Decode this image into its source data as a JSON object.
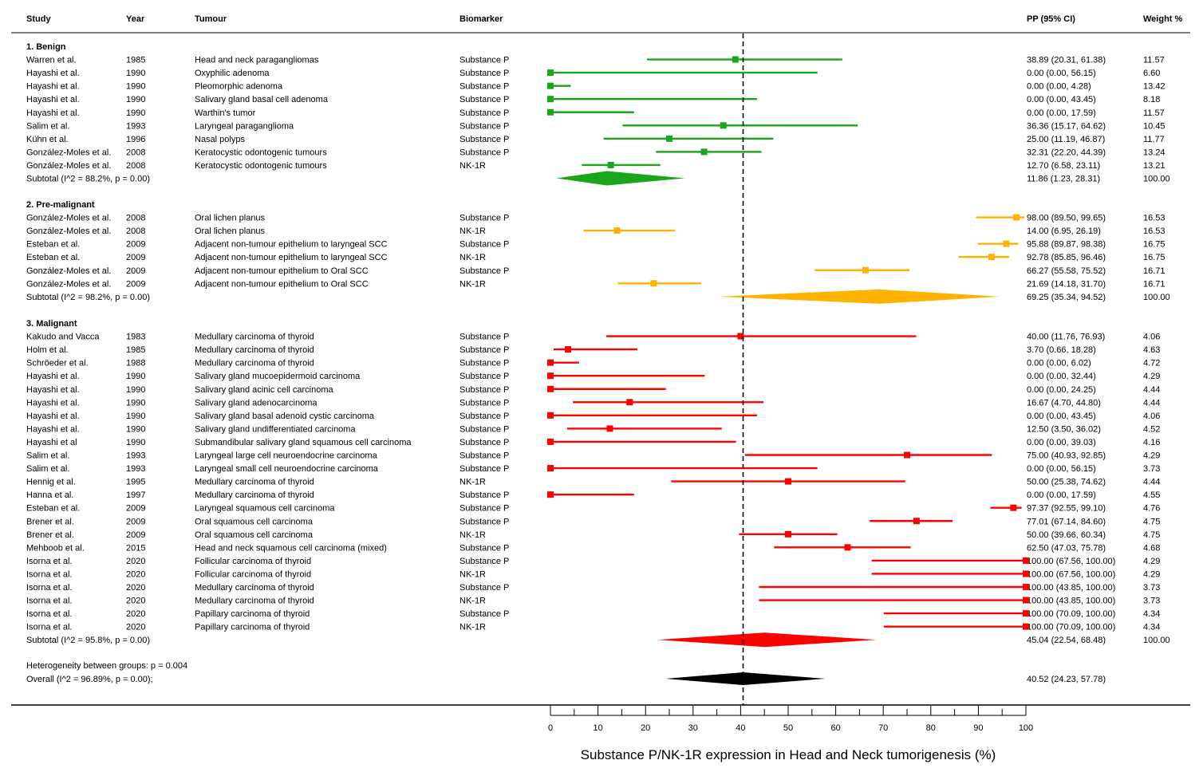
{
  "chart_data": {
    "type": "forest",
    "xlabel": "Substance P/NK-1R expression in Head and Neck tumorigenesis (%)",
    "xlim": [
      0,
      100
    ],
    "xticks": [
      0,
      10,
      20,
      30,
      40,
      50,
      60,
      70,
      80,
      90,
      100
    ],
    "reference_line": 40.52,
    "columns": {
      "study": "Study",
      "year": "Year",
      "tumour": "Tumour",
      "biomarker": "Biomarker",
      "pp": "PP (95% CI)",
      "weight": "Weight %"
    },
    "groups": [
      {
        "label": "1. Benign",
        "color": "#1aa61a",
        "studies": [
          {
            "study": "Warren et al.",
            "year": "1985",
            "tumour": "Head and neck paragangliomas",
            "biomarker": "Substance P",
            "est": 38.89,
            "lo": 20.31,
            "hi": 61.38,
            "pp": "38.89 (20.31, 61.38)",
            "weight": "11.57"
          },
          {
            "study": "Hayashi et al.",
            "year": "1990",
            "tumour": "Oxyphilic adenoma",
            "biomarker": "Substance P",
            "est": 0.0,
            "lo": 0.0,
            "hi": 56.15,
            "pp": "0.00 (0.00, 56.15)",
            "weight": "6.60"
          },
          {
            "study": "Hayashi et al.",
            "year": "1990",
            "tumour": "Pleomorphic adenoma",
            "biomarker": "Substance P",
            "est": 0.0,
            "lo": 0.0,
            "hi": 4.28,
            "pp": "0.00 (0.00, 4.28)",
            "weight": "13.42"
          },
          {
            "study": "Hayashi et al.",
            "year": "1990",
            "tumour": "Salivary gland basal cell adenoma",
            "biomarker": "Substance P",
            "est": 0.0,
            "lo": 0.0,
            "hi": 43.45,
            "pp": "0.00 (0.00, 43.45)",
            "weight": "8.18"
          },
          {
            "study": "Hayashi et al.",
            "year": "1990",
            "tumour": "Warthin's tumor",
            "biomarker": "Substance P",
            "est": 0.0,
            "lo": 0.0,
            "hi": 17.59,
            "pp": "0.00 (0.00, 17.59)",
            "weight": "11.57"
          },
          {
            "study": "Salim et al.",
            "year": "1993",
            "tumour": "Laryngeal paraganglioma",
            "biomarker": "Substance P",
            "est": 36.36,
            "lo": 15.17,
            "hi": 64.62,
            "pp": "36.36 (15.17, 64.62)",
            "weight": "10.45"
          },
          {
            "study": "Kühn et al.",
            "year": "1996",
            "tumour": "Nasal polyps",
            "biomarker": "Substance P",
            "est": 25.0,
            "lo": 11.19,
            "hi": 46.87,
            "pp": "25.00 (11.19, 46.87)",
            "weight": "11.77"
          },
          {
            "study": "González-Moles et al.",
            "year": "2008",
            "tumour": "Keratocystic odontogenic tumours",
            "biomarker": "Substance P",
            "est": 32.31,
            "lo": 22.2,
            "hi": 44.39,
            "pp": "32.31 (22.20, 44.39)",
            "weight": "13.24"
          },
          {
            "study": "González-Moles et al.",
            "year": "2008",
            "tumour": "Keratocystic odontogenic tumours",
            "biomarker": "NK-1R",
            "est": 12.7,
            "lo": 6.58,
            "hi": 23.11,
            "pp": "12.70 (6.58, 23.11)",
            "weight": "13.21"
          }
        ],
        "subtotal": {
          "label": "Subtotal  (I^2 = 88.2%, p = 0.00)",
          "est": 11.86,
          "lo": 1.23,
          "hi": 28.31,
          "pp": "11.86 (1.23, 28.31)",
          "weight": "100.00"
        }
      },
      {
        "label": "2. Pre-malignant",
        "color": "#ffb300",
        "studies": [
          {
            "study": "González-Moles et al.",
            "year": "2008",
            "tumour": "Oral lichen planus",
            "biomarker": "Substance P",
            "est": 98.0,
            "lo": 89.5,
            "hi": 99.65,
            "pp": "98.00 (89.50, 99.65)",
            "weight": "16.53"
          },
          {
            "study": "González-Moles et al.",
            "year": "2008",
            "tumour": "Oral lichen planus",
            "biomarker": "NK-1R",
            "est": 14.0,
            "lo": 6.95,
            "hi": 26.19,
            "pp": "14.00 (6.95, 26.19)",
            "weight": "16.53"
          },
          {
            "study": "Esteban et al.",
            "year": "2009",
            "tumour": "Adjacent non-tumour epithelium to laryngeal SCC",
            "biomarker": "Substance P",
            "est": 95.88,
            "lo": 89.87,
            "hi": 98.38,
            "pp": "95.88 (89.87, 98.38)",
            "weight": "16.75"
          },
          {
            "study": "Esteban et al.",
            "year": "2009",
            "tumour": "Adjacent non-tumour epithelium to laryngeal SCC",
            "biomarker": "NK-1R",
            "est": 92.78,
            "lo": 85.85,
            "hi": 96.46,
            "pp": "92.78 (85.85, 96.46)",
            "weight": "16.75"
          },
          {
            "study": "González-Moles et al.",
            "year": "2009",
            "tumour": "Adjacent non-tumour epithelium to Oral SCC",
            "biomarker": "Substance P",
            "est": 66.27,
            "lo": 55.58,
            "hi": 75.52,
            "pp": "66.27 (55.58, 75.52)",
            "weight": "16.71"
          },
          {
            "study": "González-Moles et al.",
            "year": "2009",
            "tumour": "Adjacent non-tumour epithelium to Oral SCC",
            "biomarker": "NK-1R",
            "est": 21.69,
            "lo": 14.18,
            "hi": 31.7,
            "pp": "21.69 (14.18, 31.70)",
            "weight": "16.71"
          }
        ],
        "subtotal": {
          "label": "Subtotal  (I^2 = 98.2%, p = 0.00)",
          "est": 69.25,
          "lo": 35.34,
          "hi": 94.52,
          "pp": "69.25 (35.34, 94.52)",
          "weight": "100.00"
        }
      },
      {
        "label": "3. Malignant",
        "color": "#ff0000",
        "studies": [
          {
            "study": "Kakudo and Vacca",
            "year": "1983",
            "tumour": "Medullary carcinoma of thyroid",
            "biomarker": "Substance P",
            "est": 40.0,
            "lo": 11.76,
            "hi": 76.93,
            "pp": "40.00 (11.76, 76.93)",
            "weight": "4.06"
          },
          {
            "study": "Holm et al.",
            "year": "1985",
            "tumour": "Medullary carcinoma of thyroid",
            "biomarker": "Substance P",
            "est": 3.7,
            "lo": 0.66,
            "hi": 18.28,
            "pp": "3.70 (0.66, 18.28)",
            "weight": "4.63"
          },
          {
            "study": "Schröeder et al.",
            "year": "1988",
            "tumour": "Medullary carcinoma of thyroid",
            "biomarker": "Substance P",
            "est": 0.0,
            "lo": 0.0,
            "hi": 6.02,
            "pp": "0.00 (0.00, 6.02)",
            "weight": "4.72"
          },
          {
            "study": "Hayashi et al.",
            "year": "1990",
            "tumour": "Salivary gland mucoepidermoid carcinoma",
            "biomarker": "Substance P",
            "est": 0.0,
            "lo": 0.0,
            "hi": 32.44,
            "pp": "0.00 (0.00, 32.44)",
            "weight": "4.29"
          },
          {
            "study": "Hayashi et al.",
            "year": "1990",
            "tumour": "Salivary gland acinic cell carcinoma",
            "biomarker": "Substance P",
            "est": 0.0,
            "lo": 0.0,
            "hi": 24.25,
            "pp": "0.00 (0.00, 24.25)",
            "weight": "4.44"
          },
          {
            "study": "Hayashi et al.",
            "year": "1990",
            "tumour": "Salivary gland adenocarcinoma",
            "biomarker": "Substance P",
            "est": 16.67,
            "lo": 4.7,
            "hi": 44.8,
            "pp": "16.67 (4.70, 44.80)",
            "weight": "4.44"
          },
          {
            "study": "Hayashi et al.",
            "year": "1990",
            "tumour": "Salivary gland basal adenoid cystic carcinoma",
            "biomarker": "Substance P",
            "est": 0.0,
            "lo": 0.0,
            "hi": 43.45,
            "pp": "0.00 (0.00, 43.45)",
            "weight": "4.06"
          },
          {
            "study": "Hayashi et al.",
            "year": "1990",
            "tumour": "Salivary gland undifferentiated carcinoma",
            "biomarker": "Substance P",
            "est": 12.5,
            "lo": 3.5,
            "hi": 36.02,
            "pp": "12.50 (3.50, 36.02)",
            "weight": "4.52"
          },
          {
            "study": "Hayashi et al",
            "year": "1990",
            "tumour": "Submandibular salivary gland squamous cell carcinoma",
            "biomarker": "Substance P",
            "est": 0.0,
            "lo": 0.0,
            "hi": 39.03,
            "pp": "0.00 (0.00, 39.03)",
            "weight": "4.16"
          },
          {
            "study": "Salim et al.",
            "year": "1993",
            "tumour": "Laryngeal large cell neuroendocrine carcinoma",
            "biomarker": "Substance P",
            "est": 75.0,
            "lo": 40.93,
            "hi": 92.85,
            "pp": "75.00 (40.93, 92.85)",
            "weight": "4.29"
          },
          {
            "study": "Salim et al.",
            "year": "1993",
            "tumour": "Laryngeal small cell neuroendocrine carcinoma",
            "biomarker": "Substance P",
            "est": 0.0,
            "lo": 0.0,
            "hi": 56.15,
            "pp": "0.00 (0.00, 56.15)",
            "weight": "3.73"
          },
          {
            "study": "Hennig et al.",
            "year": "1995",
            "tumour": "Medullary carcinoma of thyroid",
            "biomarker": "NK-1R",
            "est": 50.0,
            "lo": 25.38,
            "hi": 74.62,
            "pp": "50.00 (25.38, 74.62)",
            "weight": "4.44"
          },
          {
            "study": "Hanna et al.",
            "year": "1997",
            "tumour": "Medullary carcinoma of thyroid",
            "biomarker": "Substance P",
            "est": 0.0,
            "lo": 0.0,
            "hi": 17.59,
            "pp": "0.00 (0.00, 17.59)",
            "weight": "4.55"
          },
          {
            "study": "Esteban et al.",
            "year": "2009",
            "tumour": "Laryngeal squamous cell carcinoma",
            "biomarker": "Substance P",
            "est": 97.37,
            "lo": 92.55,
            "hi": 99.1,
            "pp": "97.37 (92.55, 99.10)",
            "weight": "4.76"
          },
          {
            "study": "Brener et al.",
            "year": "2009",
            "tumour": "Oral squamous cell carcinoma",
            "biomarker": "Substance P",
            "est": 77.01,
            "lo": 67.14,
            "hi": 84.6,
            "pp": "77.01 (67.14, 84.60)",
            "weight": "4.75"
          },
          {
            "study": "Brener et al.",
            "year": "2009",
            "tumour": "Oral squamous cell carcinoma",
            "biomarker": "NK-1R",
            "est": 50.0,
            "lo": 39.66,
            "hi": 60.34,
            "pp": "50.00 (39.66, 60.34)",
            "weight": "4.75"
          },
          {
            "study": "Mehboob et al.",
            "year": "2015",
            "tumour": "Head and neck squamous cell carcinoma (mixed)",
            "biomarker": "Substance P",
            "est": 62.5,
            "lo": 47.03,
            "hi": 75.78,
            "pp": "62.50 (47.03, 75.78)",
            "weight": "4.68"
          },
          {
            "study": "Isorna et al.",
            "year": "2020",
            "tumour": "Follicular carcinoma of thyroid",
            "biomarker": "Substance P",
            "est": 100.0,
            "lo": 67.56,
            "hi": 100.0,
            "pp": "100.00 (67.56, 100.00)",
            "weight": "4.29"
          },
          {
            "study": "Isorna et al.",
            "year": "2020",
            "tumour": "Follicular carcinoma of thyroid",
            "biomarker": "NK-1R",
            "est": 100.0,
            "lo": 67.56,
            "hi": 100.0,
            "pp": "100.00 (67.56, 100.00)",
            "weight": "4.29"
          },
          {
            "study": "Isorna et al.",
            "year": "2020",
            "tumour": "Medullary carcinoma of thyroid",
            "biomarker": "Substance P",
            "est": 100.0,
            "lo": 43.85,
            "hi": 100.0,
            "pp": "100.00 (43.85, 100.00)",
            "weight": "3.73"
          },
          {
            "study": "Isorna et al.",
            "year": "2020",
            "tumour": "Medullary carcinoma of thyroid",
            "biomarker": "NK-1R",
            "est": 100.0,
            "lo": 43.85,
            "hi": 100.0,
            "pp": "100.00 (43.85, 100.00)",
            "weight": "3.73"
          },
          {
            "study": "Isorna et al.",
            "year": "2020",
            "tumour": "Papillary carcinoma of thyroid",
            "biomarker": "Substance P",
            "est": 100.0,
            "lo": 70.09,
            "hi": 100.0,
            "pp": "100.00 (70.09, 100.00)",
            "weight": "4.34"
          },
          {
            "study": "Isorna et al.",
            "year": "2020",
            "tumour": "Papillary carcinoma of thyroid",
            "biomarker": "NK-1R",
            "est": 100.0,
            "lo": 70.09,
            "hi": 100.0,
            "pp": "100.00 (70.09, 100.00)",
            "weight": "4.34"
          }
        ],
        "subtotal": {
          "label": "Subtotal  (I^2 = 95.8%, p = 0.00)",
          "est": 45.04,
          "lo": 22.54,
          "hi": 68.48,
          "pp": "45.04 (22.54, 68.48)",
          "weight": "100.00"
        }
      }
    ],
    "heterogeneity": "Heterogeneity between groups: p = 0.004",
    "overall": {
      "label": "Overall  (I^2 = 96.89%, p = 0.00);",
      "est": 40.52,
      "lo": 24.23,
      "hi": 57.78,
      "pp": "40.52 (24.23, 57.78)",
      "color": "#000000"
    }
  }
}
